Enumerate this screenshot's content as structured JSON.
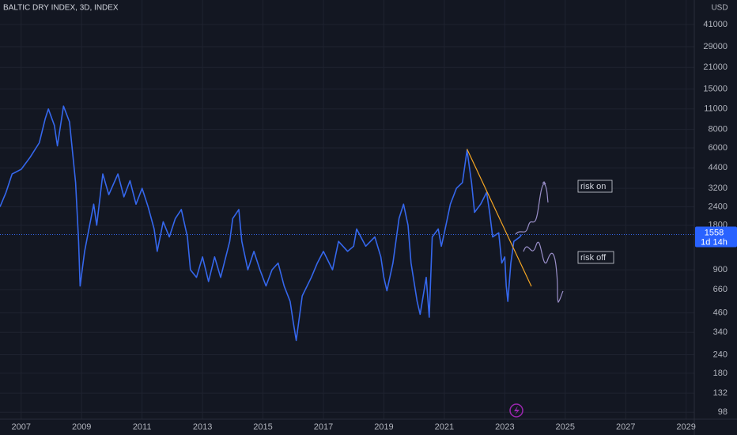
{
  "chart_data": {
    "type": "line",
    "title": "BALTIC DRY INDEX, 3D, INDEX",
    "y_unit": "USD",
    "log_scale": true,
    "grid": true,
    "color": "#3567ec",
    "x": [
      2006.3,
      2006.5,
      2006.7,
      2007.0,
      2007.3,
      2007.6,
      2007.8,
      2007.9,
      2008.1,
      2008.2,
      2008.4,
      2008.6,
      2008.8,
      2008.9,
      2008.95,
      2009.1,
      2009.4,
      2009.5,
      2009.7,
      2009.9,
      2010.2,
      2010.4,
      2010.6,
      2010.8,
      2011.0,
      2011.2,
      2011.4,
      2011.5,
      2011.7,
      2011.9,
      2012.1,
      2012.3,
      2012.5,
      2012.6,
      2012.8,
      2013.0,
      2013.2,
      2013.4,
      2013.6,
      2013.9,
      2014.0,
      2014.2,
      2014.3,
      2014.5,
      2014.7,
      2014.9,
      2015.1,
      2015.3,
      2015.5,
      2015.7,
      2015.9,
      2016.0,
      2016.1,
      2016.3,
      2016.6,
      2016.8,
      2017.0,
      2017.3,
      2017.5,
      2017.8,
      2018.0,
      2018.1,
      2018.4,
      2018.7,
      2018.9,
      2019.0,
      2019.1,
      2019.3,
      2019.5,
      2019.65,
      2019.8,
      2019.9,
      2020.1,
      2020.2,
      2020.4,
      2020.5,
      2020.6,
      2020.8,
      2020.9,
      2021.0,
      2021.2,
      2021.4,
      2021.6,
      2021.75,
      2021.9,
      2022.0,
      2022.2,
      2022.4,
      2022.5,
      2022.6,
      2022.8,
      2022.9,
      2023.0,
      2023.05,
      2023.1,
      2023.2,
      2023.3,
      2023.5,
      2023.55
    ],
    "values": [
      2400,
      3000,
      4000,
      4300,
      5200,
      6500,
      9500,
      11000,
      8500,
      6200,
      11500,
      9000,
      3500,
      1400,
      700,
      1200,
      2500,
      1800,
      4000,
      2900,
      4000,
      2800,
      3600,
      2500,
      3200,
      2400,
      1700,
      1200,
      1900,
      1500,
      2000,
      2300,
      1500,
      900,
      800,
      1100,
      750,
      1100,
      800,
      1400,
      2000,
      2300,
      1400,
      900,
      1200,
      900,
      700,
      900,
      1000,
      700,
      550,
      400,
      300,
      600,
      800,
      1000,
      1200,
      900,
      1400,
      1200,
      1300,
      1700,
      1300,
      1500,
      1100,
      800,
      650,
      1000,
      2000,
      2500,
      1800,
      1000,
      550,
      450,
      800,
      430,
      1500,
      1700,
      1300,
      1600,
      2500,
      3200,
      3500,
      5800,
      3500,
      2200,
      2500,
      3000,
      2200,
      1500,
      1600,
      1000,
      1100,
      700,
      550,
      1000,
      1400,
      1500,
      1558
    ],
    "xlim": [
      2006.3,
      2029.27
    ],
    "ylim": [
      88,
      60000
    ],
    "xticks": [
      2007,
      2009,
      2011,
      2013,
      2015,
      2017,
      2019,
      2021,
      2023,
      2025,
      2027,
      2029
    ],
    "yticks": [
      41000,
      29000,
      21000,
      15000,
      11000,
      8000,
      6000,
      4400,
      3200,
      2400,
      1800,
      900,
      660,
      460,
      340,
      240,
      180,
      132,
      98
    ],
    "last_value": 1558,
    "countdown": "1d 14h",
    "trendline": {
      "x": [
        2021.75,
        2023.88
      ],
      "values": [
        5900,
        695
      ],
      "color": "#f5a623"
    },
    "annotations": [
      "risk on",
      "risk off"
    ]
  }
}
